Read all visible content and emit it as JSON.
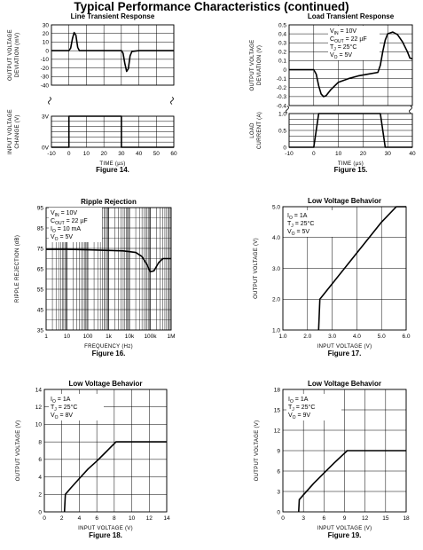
{
  "page_title": "Typical Performance Characteristics (continued)",
  "chart_data": [
    {
      "id": "fig14",
      "type": "line",
      "title": "Line Transient Response",
      "figure_label": "Figure 14.",
      "xlabel": "TIME (µs)",
      "xlim": [
        -10,
        60
      ],
      "xticks": [
        "-10",
        "0",
        "10",
        "20",
        "30",
        "40",
        "50",
        "60"
      ],
      "panels": [
        {
          "ylabel": [
            "OUTPUT VOLTAGE",
            "DEVIATION (mV)"
          ],
          "ylim": [
            -40,
            30
          ],
          "yticks": [
            "30",
            "20",
            "10",
            "0",
            "-10",
            "-20",
            "-30",
            "-40"
          ],
          "series": [
            {
              "x": [
                -10,
                0,
                1,
                2,
                3,
                4,
                5,
                6,
                8,
                30,
                31,
                32,
                33,
                34,
                35,
                36,
                40,
                60
              ],
              "y": [
                0,
                0,
                3,
                14,
                21,
                18,
                4,
                0,
                0,
                0,
                -3,
                -15,
                -24,
                -21,
                -6,
                -1,
                0,
                0
              ]
            }
          ]
        },
        {
          "ylabel": [
            "INPUT VOLTAGE",
            "CHANGE (V)"
          ],
          "ylim": [
            0,
            3
          ],
          "yticks": [
            "3V",
            "0V"
          ],
          "series": [
            {
              "x": [
                -10,
                0,
                0,
                30,
                30,
                60
              ],
              "y": [
                0,
                0,
                3,
                3,
                0,
                0
              ]
            }
          ]
        }
      ]
    },
    {
      "id": "fig15",
      "type": "line",
      "title": "Load Transient Response",
      "figure_label": "Figure 15.",
      "xlabel": "TIME (µs)",
      "xlim": [
        -10,
        40
      ],
      "xticks": [
        "-10",
        "0",
        "10",
        "20",
        "30",
        "40"
      ],
      "annotation": [
        "V_IN = 10V",
        "C_OUT = 22 µF",
        "T_J = 25°C",
        "V_O = 5V"
      ],
      "panels": [
        {
          "ylabel": [
            "OUTPUT VOLTAGE",
            "DEVIATION (V)"
          ],
          "ylim": [
            -0.4,
            0.5
          ],
          "yticks": [
            "0.5",
            "0.4",
            "0.3",
            "0.2",
            "0.1",
            "0",
            "-0.1",
            "-0.2",
            "-0.3",
            "-0.4"
          ],
          "series": [
            {
              "x": [
                -10,
                0,
                1,
                2,
                3,
                4,
                5,
                7,
                10,
                14,
                18,
                22,
                26,
                27,
                28,
                29,
                30,
                32,
                34,
                36,
                38,
                39,
                40
              ],
              "y": [
                0,
                0,
                -0.05,
                -0.18,
                -0.27,
                -0.3,
                -0.29,
                -0.22,
                -0.14,
                -0.1,
                -0.07,
                -0.05,
                -0.03,
                0.05,
                0.2,
                0.33,
                0.4,
                0.42,
                0.39,
                0.31,
                0.2,
                0.13,
                0.12
              ]
            }
          ]
        },
        {
          "ylabel": [
            "LOAD",
            "CURRENT (A)"
          ],
          "ylim": [
            0,
            1
          ],
          "yticks": [
            "1.0",
            "0.5",
            "0"
          ],
          "series": [
            {
              "x": [
                -10,
                0,
                2,
                27,
                29,
                40
              ],
              "y": [
                0,
                0,
                1,
                1,
                0,
                0
              ]
            }
          ]
        }
      ]
    },
    {
      "id": "fig16",
      "type": "line",
      "title": "Ripple Rejection",
      "figure_label": "Figure 16.",
      "xlabel": "FREQUENCY (Hz)",
      "xscale": "log",
      "xlim": [
        1,
        1000000
      ],
      "xticks": [
        "1",
        "10",
        "100",
        "1k",
        "10k",
        "100k",
        "1M"
      ],
      "ylabel": "RIPPLE REJECTION (dB)",
      "ylim": [
        35,
        95
      ],
      "yticks": [
        "95",
        "85",
        "75",
        "65",
        "55",
        "45",
        "35"
      ],
      "annotation": [
        "V_IN = 10V",
        "C_OUT = 22 µF",
        "I_O = 10 mA",
        "V_O = 5V"
      ],
      "series": [
        {
          "x": [
            1,
            10,
            100,
            1000,
            5000,
            20000,
            40000,
            70000,
            100000,
            150000,
            250000,
            400000,
            1000000
          ],
          "y": [
            74.5,
            74.5,
            74.3,
            74,
            73.8,
            73,
            71,
            67,
            63.5,
            64,
            68,
            70,
            70
          ]
        }
      ]
    },
    {
      "id": "fig17",
      "type": "line",
      "title": "Low Voltage Behavior",
      "figure_label": "Figure 17.",
      "xlabel": "INPUT VOLTAGE (V)",
      "ylabel": "OUTPUT VOLTAGE (V)",
      "xlim": [
        1,
        6
      ],
      "ylim": [
        1,
        5
      ],
      "xticks": [
        "1.0",
        "2.0",
        "3.0",
        "4.0",
        "5.0",
        "6.0"
      ],
      "yticks": [
        "5.0",
        "4.0",
        "3.0",
        "2.0",
        "1.0"
      ],
      "annotation": [
        "I_O = 1A",
        "T_J = 25°C",
        "V_O = 5V"
      ],
      "series": [
        {
          "x": [
            2.45,
            2.5,
            3.0,
            4.0,
            5.0,
            5.6,
            6.0
          ],
          "y": [
            1.0,
            2.0,
            2.5,
            3.5,
            4.5,
            5.0,
            5.0
          ]
        }
      ]
    },
    {
      "id": "fig18",
      "type": "line",
      "title": "Low Voltage Behavior",
      "figure_label": "Figure 18.",
      "xlabel": "INPUT VOLTAGE (V)",
      "ylabel": "OUTPUT VOLTAGE (V)",
      "xlim": [
        0,
        14
      ],
      "ylim": [
        0,
        14
      ],
      "xticks": [
        "0",
        "2",
        "4",
        "6",
        "8",
        "10",
        "12",
        "14"
      ],
      "yticks": [
        "14",
        "12",
        "10",
        "8",
        "6",
        "4",
        "2",
        "0"
      ],
      "annotation": [
        "I_O = 1A",
        "T_J = 25°C",
        "V_O = 8V"
      ],
      "series": [
        {
          "x": [
            2.3,
            2.4,
            3,
            4,
            5,
            6,
            7,
            8.2,
            10,
            12,
            14
          ],
          "y": [
            0,
            2,
            2.7,
            3.8,
            4.9,
            5.8,
            6.8,
            8,
            8,
            8,
            8
          ]
        }
      ]
    },
    {
      "id": "fig19",
      "type": "line",
      "title": "Low Voltage Behavior",
      "figure_label": "Figure 19.",
      "xlabel": "INPUT VOLTAGE (V)",
      "ylabel": "OUTPUT VOLTAGE (V)",
      "xlim": [
        0,
        18
      ],
      "ylim": [
        0,
        18
      ],
      "xticks": [
        "0",
        "3",
        "6",
        "9",
        "12",
        "15",
        "18"
      ],
      "yticks": [
        "18",
        "15",
        "12",
        "9",
        "6",
        "3",
        "0"
      ],
      "annotation": [
        "I_O = 1A",
        "T_J = 25°C",
        "V_O = 9V"
      ],
      "series": [
        {
          "x": [
            2.3,
            2.4,
            3,
            4.5,
            6,
            7.5,
            9.4,
            12,
            15,
            18
          ],
          "y": [
            0,
            1.8,
            2.5,
            4.2,
            5.7,
            7.2,
            9,
            9,
            9,
            9
          ]
        }
      ]
    }
  ]
}
